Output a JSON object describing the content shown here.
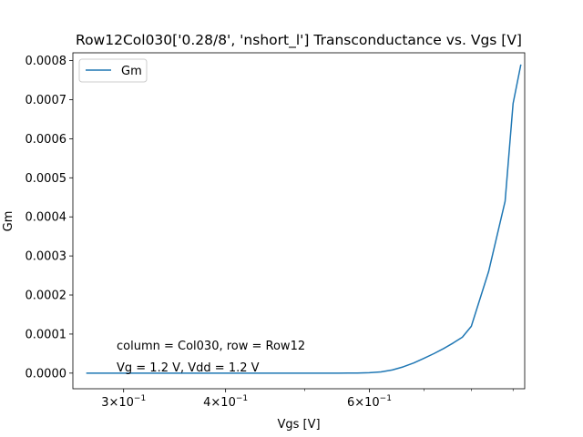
{
  "chart_data": {
    "type": "line",
    "title": "Row12Col030['0.28/8', 'nshort_l'] Transconductance vs. Vgs [V]",
    "xlabel": "Vgs [V]",
    "ylabel": "Gm",
    "xscale": "log",
    "xlim": [
      0.26,
      0.93
    ],
    "ylim": [
      -4e-05,
      0.00082
    ],
    "x_ticks": [
      {
        "value": 0.3,
        "base": "3×10",
        "exp": "−1"
      },
      {
        "value": 0.4,
        "base": "4×10",
        "exp": "−1"
      },
      {
        "value": 0.6,
        "base": "6×10",
        "exp": "−1"
      }
    ],
    "x_minor_ticks": [
      0.5,
      0.7,
      0.8,
      0.9
    ],
    "y_ticks": [
      {
        "value": 0.0,
        "label": "0.0000"
      },
      {
        "value": 0.0001,
        "label": "0.0001"
      },
      {
        "value": 0.0002,
        "label": "0.0002"
      },
      {
        "value": 0.0003,
        "label": "0.0003"
      },
      {
        "value": 0.0004,
        "label": "0.0004"
      },
      {
        "value": 0.0005,
        "label": "0.0005"
      },
      {
        "value": 0.0006,
        "label": "0.0006"
      },
      {
        "value": 0.0007,
        "label": "0.0007"
      },
      {
        "value": 0.0008,
        "label": "0.0008"
      }
    ],
    "legend": {
      "position": "top-left",
      "entries": [
        "Gm"
      ]
    },
    "series": [
      {
        "name": "Gm",
        "color": "#1f77b4",
        "x": [
          0.27,
          0.3,
          0.35,
          0.4,
          0.45,
          0.5,
          0.55,
          0.58,
          0.6,
          0.62,
          0.64,
          0.66,
          0.68,
          0.7,
          0.72,
          0.74,
          0.76,
          0.78,
          0.8,
          0.84,
          0.88,
          0.9,
          0.92
        ],
        "values": [
          0.0,
          0.0,
          0.0,
          0.0,
          0.0,
          0.0,
          0.0,
          3e-07,
          1e-06,
          3e-06,
          8e-06,
          1.6e-05,
          2.6e-05,
          3.8e-05,
          5e-05,
          6.3e-05,
          7.7e-05,
          9.2e-05,
          0.00012,
          0.00026,
          0.00044,
          0.00069,
          0.00079
        ]
      }
    ],
    "annotations": [
      "column = Col030, row = Row12",
      "Vg = 1.2 V, Vdd = 1.2 V"
    ]
  }
}
